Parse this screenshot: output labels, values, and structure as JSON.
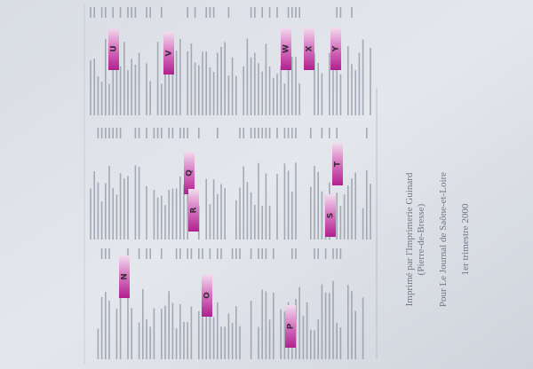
{
  "index_headers": [
    "N",
    "O",
    "P",
    "Q",
    "R",
    "S",
    "T",
    "U",
    "V",
    "W",
    "X",
    "Y"
  ],
  "colophon": {
    "printer": "Imprimé par l'Imprimerie Guinard",
    "place": "(Pierre-de-Bresse)",
    "client": "Pour Le Journal de Saône-et-Loire",
    "date": "1er trimestre 2000"
  }
}
